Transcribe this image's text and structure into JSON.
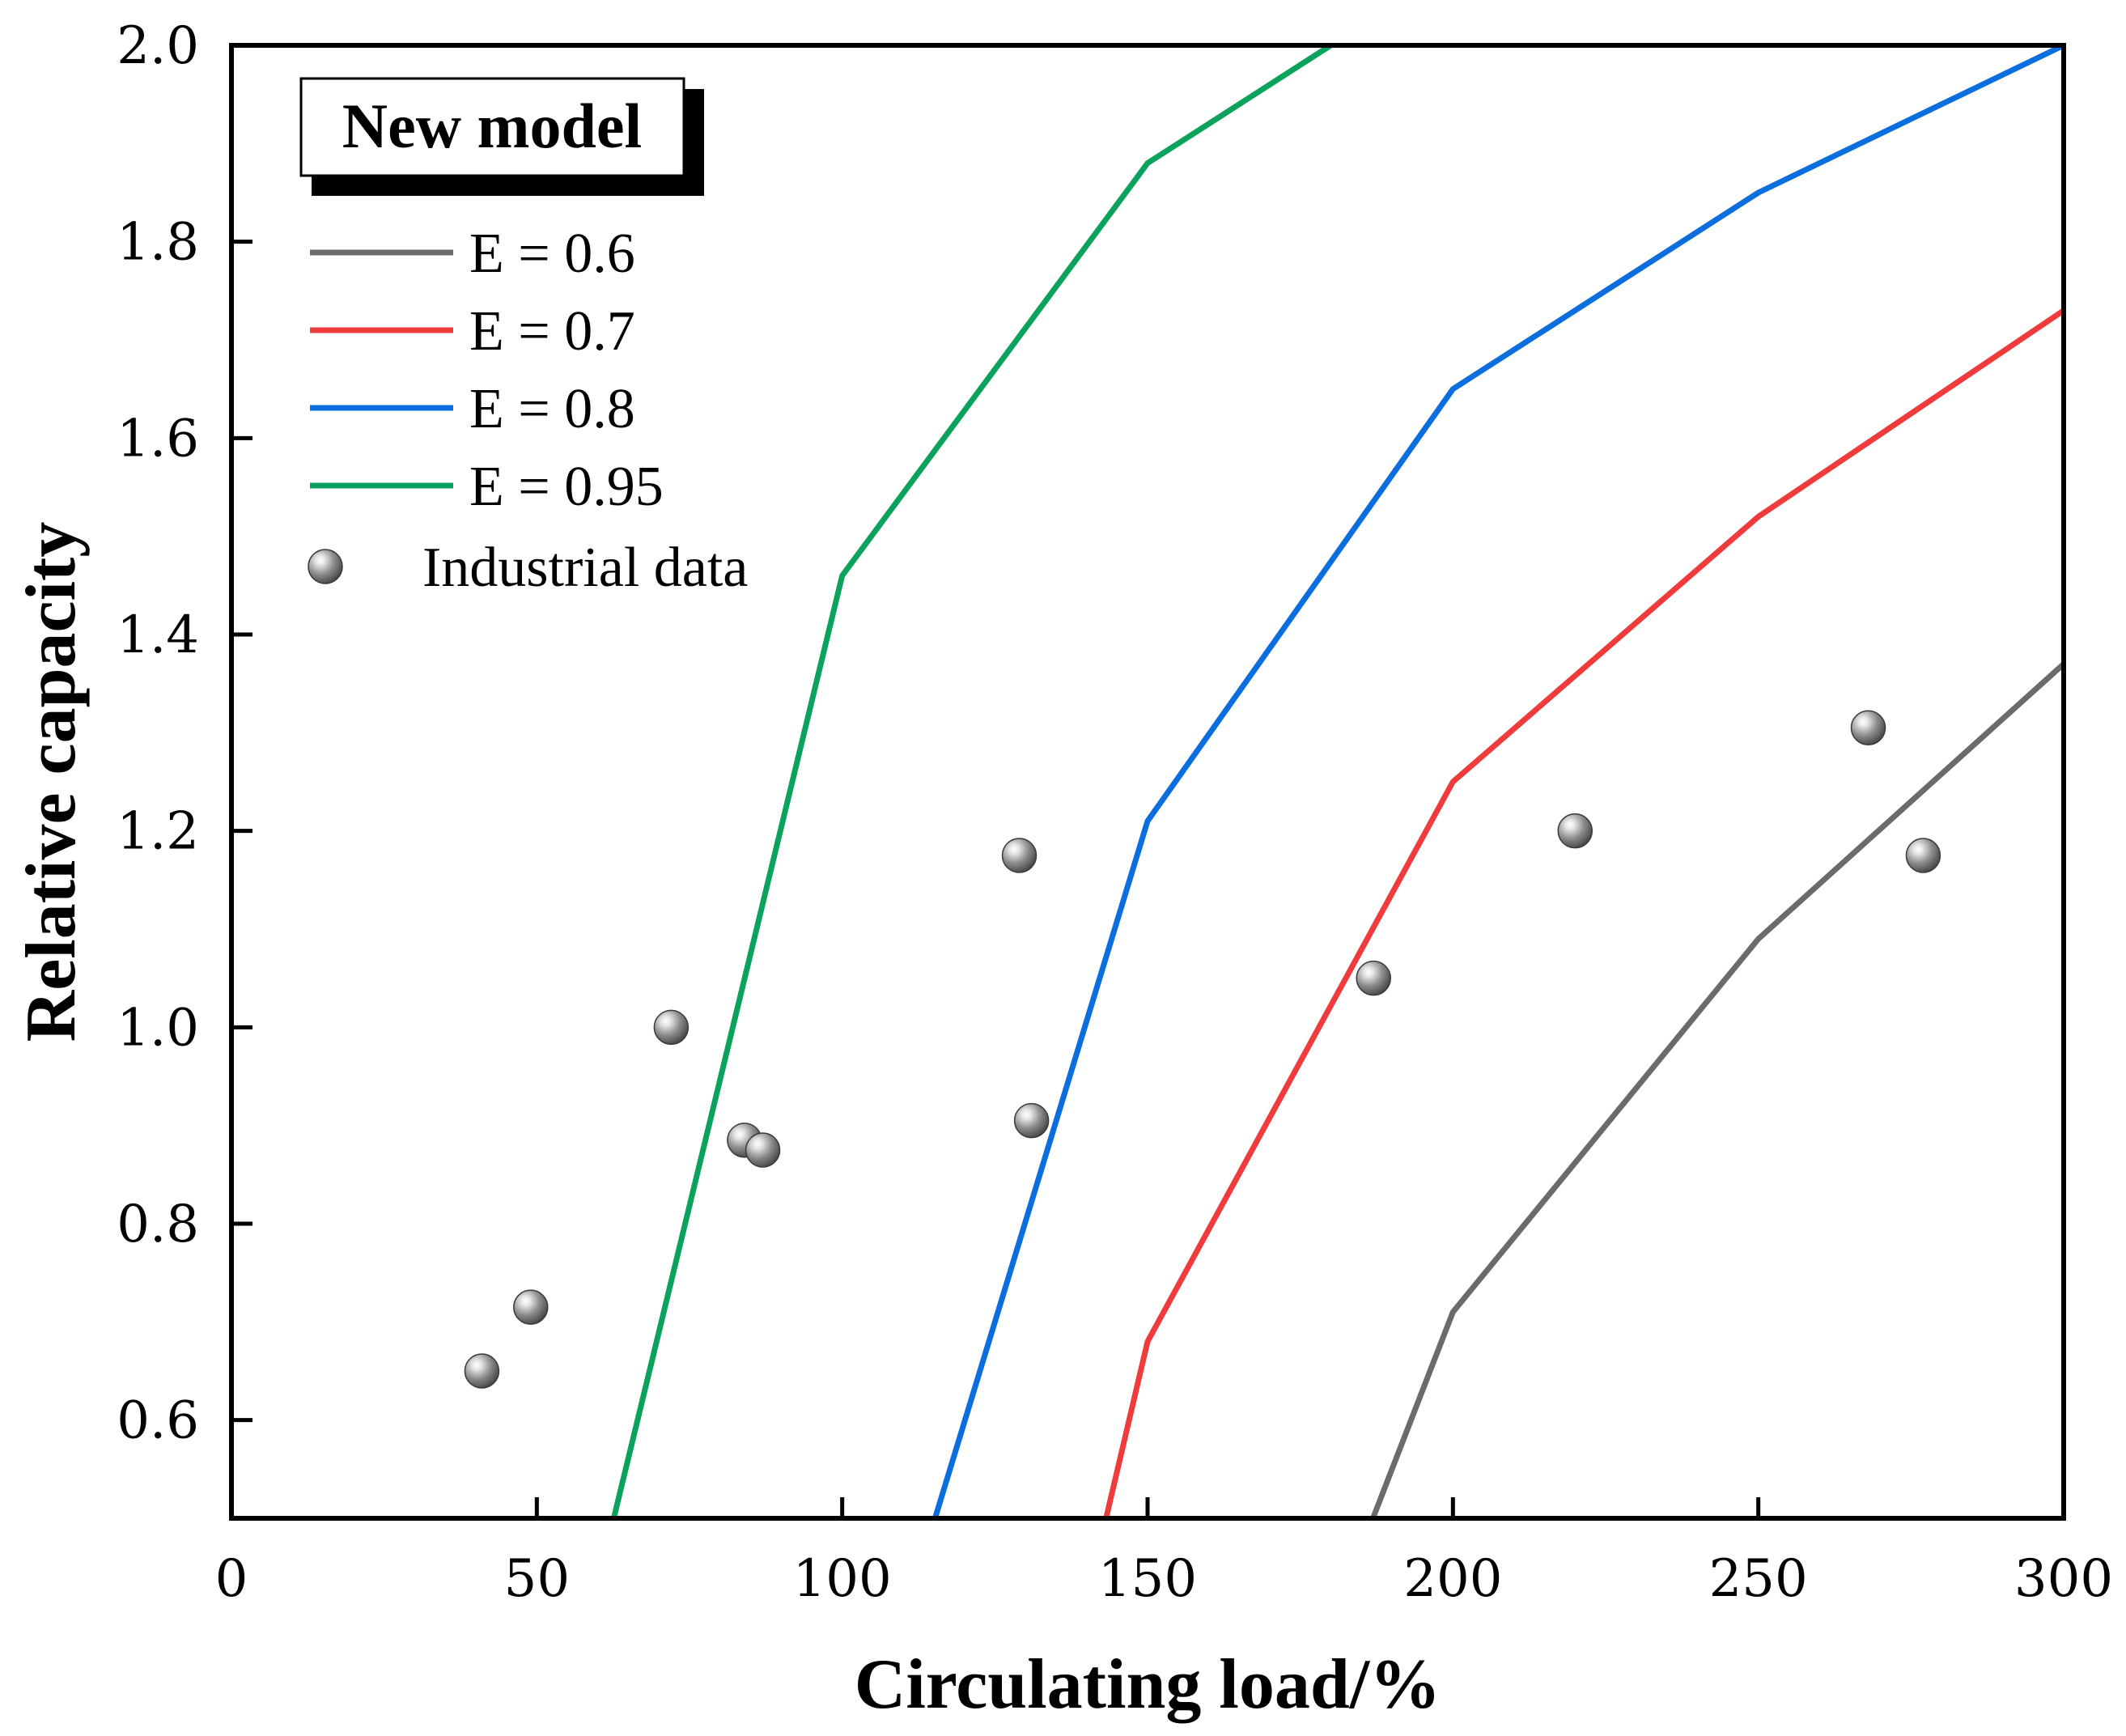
{
  "chart_data": {
    "type": "line",
    "title": "",
    "xlabel": "Circulating load/%",
    "ylabel": "Relative capacity",
    "xlim": [
      0,
      300
    ],
    "ylim": [
      0.5,
      2.0
    ],
    "xticks": [
      0,
      50,
      100,
      150,
      200,
      250,
      300
    ],
    "yticks": [
      0.6,
      0.8,
      1.0,
      1.2,
      1.4,
      1.6,
      1.8,
      2.0
    ],
    "xtick_labels": [
      "0",
      "50",
      "100",
      "150",
      "200",
      "250",
      "300"
    ],
    "ytick_labels": [
      "0.6",
      "0.8",
      "1.0",
      "1.2",
      "1.4",
      "1.6",
      "1.8",
      "2.0"
    ],
    "legend_title": "New model",
    "legend_position": "top-left",
    "series": [
      {
        "name": "E = 0.6",
        "color": "#6b6b6b",
        "x": [
          186.9,
          200,
          250,
          300
        ],
        "y": [
          0.5,
          0.71,
          1.09,
          1.37
        ]
      },
      {
        "name": "E = 0.7",
        "color": "#ef3b3b",
        "x": [
          143.2,
          150,
          200,
          250,
          300
        ],
        "y": [
          0.5,
          0.68,
          1.25,
          1.52,
          1.73
        ]
      },
      {
        "name": "E = 0.8",
        "color": "#0a6ede",
        "x": [
          115.2,
          150,
          200,
          250,
          300
        ],
        "y": [
          0.5,
          1.21,
          1.65,
          1.85,
          2.0
        ]
      },
      {
        "name": "E = 0.95",
        "color": "#0ba35c",
        "x": [
          62.6,
          100,
          150,
          180
        ],
        "y": [
          0.5,
          1.46,
          1.88,
          2.0
        ]
      }
    ],
    "scatter": {
      "name": "Industrial data",
      "x": [
        41,
        49,
        72,
        84,
        87,
        129,
        131,
        187,
        220,
        268,
        277
      ],
      "y": [
        0.65,
        0.715,
        1.0,
        0.885,
        0.875,
        1.175,
        0.905,
        1.05,
        1.2,
        1.305,
        1.175
      ]
    }
  }
}
